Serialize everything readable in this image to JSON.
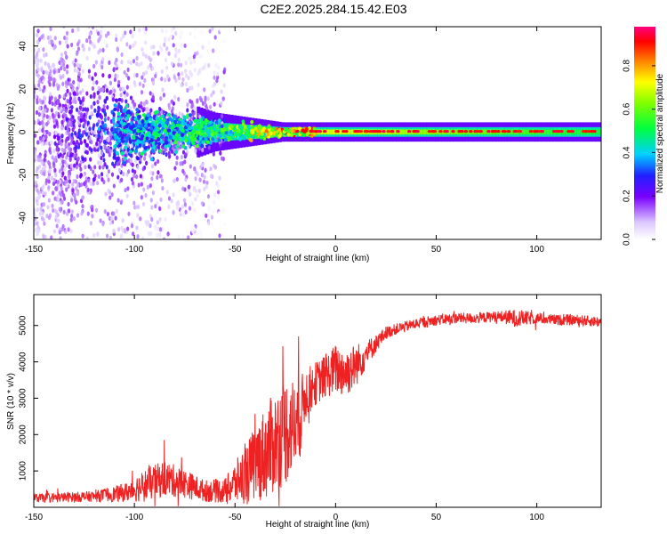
{
  "title": "C2E2.2025.284.15.42.E03",
  "colors": {
    "snr_line": "#ee2222",
    "spectrogram_low": "#7700ff",
    "spectrogram_high": "#ff0000"
  },
  "chart_data": [
    {
      "type": "heatmap",
      "name": "spectrogram",
      "xlabel": "Height of straight line (km)",
      "ylabel": "Frequency (Hz)",
      "xlim": [
        -150,
        132
      ],
      "ylim": [
        -50,
        49
      ],
      "xticks": [
        "-150",
        "-100",
        "-50",
        "0",
        "50",
        "100"
      ],
      "yticks": [
        "-40",
        "-20",
        "0",
        "20",
        "40"
      ],
      "colorbar": {
        "label": "Normalized spectral amplitude",
        "range": [
          0,
          0.98
        ],
        "ticks": [
          "0.0",
          "0.2",
          "0.4",
          "0.6",
          "0.8"
        ]
      },
      "signal": {
        "center_frequency_hz": 0,
        "description_points": [
          {
            "x": -150,
            "spread_hz": 45,
            "amplitude": 0.15
          },
          {
            "x": -100,
            "spread_hz": 12,
            "amplitude": 0.45
          },
          {
            "x": -60,
            "spread_hz": 5,
            "amplitude": 0.55
          },
          {
            "x": -20,
            "spread_hz": 2,
            "amplitude": 0.9
          },
          {
            "x": 0,
            "spread_hz": 2,
            "amplitude": 0.95
          },
          {
            "x": 130,
            "spread_hz": 2,
            "amplitude": 0.7
          }
        ]
      }
    },
    {
      "type": "line",
      "name": "snr",
      "xlabel": "Height of straight line (km)",
      "ylabel": "SNR (10 * v/v)",
      "xlim": [
        -150,
        132
      ],
      "ylim": [
        0,
        5850
      ],
      "xticks": [
        "-150",
        "-100",
        "-50",
        "0",
        "50",
        "100"
      ],
      "yticks": [
        "1000",
        "2000",
        "3000",
        "4000",
        "5000"
      ],
      "series": [
        {
          "name": "SNR",
          "x": [
            -150,
            -120,
            -105,
            -95,
            -85,
            -75,
            -65,
            -55,
            -45,
            -35,
            -25,
            -18,
            -15,
            -10,
            -5,
            0,
            5,
            10,
            15,
            20,
            25,
            30,
            40,
            50,
            60,
            70,
            80,
            90,
            100,
            110,
            120,
            132
          ],
          "values": [
            250,
            300,
            400,
            600,
            800,
            650,
            450,
            450,
            900,
            1500,
            2100,
            2400,
            3100,
            3400,
            3600,
            3800,
            3700,
            3900,
            4200,
            4500,
            4800,
            4900,
            5050,
            5150,
            5200,
            5200,
            5250,
            5200,
            5200,
            5150,
            5150,
            5100
          ],
          "noise_amplitude": [
            120,
            150,
            250,
            450,
            500,
            400,
            300,
            350,
            800,
            1300,
            1500,
            1200,
            700,
            600,
            600,
            700,
            700,
            600,
            400,
            250,
            180,
            150,
            150,
            150,
            150,
            150,
            150,
            250,
            150,
            150,
            150,
            150
          ]
        }
      ]
    }
  ]
}
